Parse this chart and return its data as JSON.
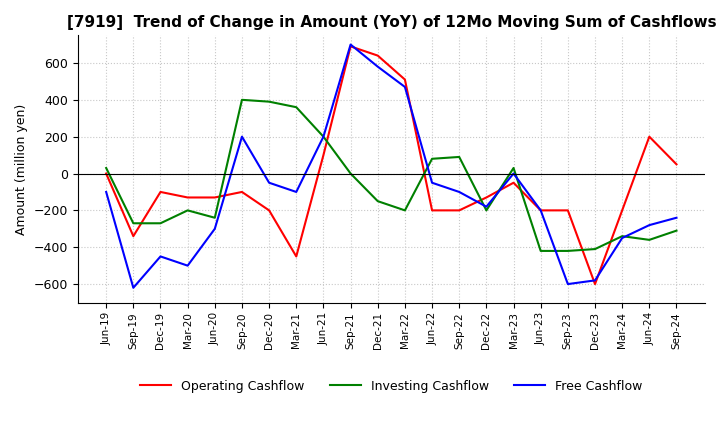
{
  "title": "[7919]  Trend of Change in Amount (YoY) of 12Mo Moving Sum of Cashflows",
  "ylabel": "Amount (million yen)",
  "ylim": [
    -700,
    750
  ],
  "yticks": [
    -600,
    -400,
    -200,
    0,
    200,
    400,
    600
  ],
  "x_labels": [
    "Jun-19",
    "Sep-19",
    "Dec-19",
    "Mar-20",
    "Jun-20",
    "Sep-20",
    "Dec-20",
    "Mar-21",
    "Jun-21",
    "Sep-21",
    "Dec-21",
    "Mar-22",
    "Jun-22",
    "Sep-22",
    "Dec-22",
    "Mar-23",
    "Jun-23",
    "Sep-23",
    "Dec-23",
    "Mar-24",
    "Jun-24",
    "Sep-24"
  ],
  "operating": [
    0,
    -340,
    -100,
    -130,
    -130,
    -100,
    -200,
    -450,
    100,
    690,
    640,
    510,
    -200,
    -200,
    -130,
    -50,
    -200,
    -200,
    -600,
    -200,
    200,
    50
  ],
  "investing": [
    30,
    -270,
    -270,
    -200,
    -240,
    400,
    390,
    360,
    200,
    0,
    -150,
    -200,
    80,
    90,
    -200,
    30,
    -420,
    -420,
    -410,
    -340,
    -360,
    -310
  ],
  "free_cashflow": [
    -100,
    -620,
    -450,
    -500,
    -300,
    200,
    -50,
    -100,
    200,
    700,
    580,
    470,
    -50,
    -100,
    -180,
    0,
    -200,
    -600,
    -580,
    -350,
    -280,
    -240
  ],
  "colors": {
    "operating": "#ff0000",
    "investing": "#008000",
    "free_cashflow": "#0000ff"
  },
  "legend_labels": [
    "Operating Cashflow",
    "Investing Cashflow",
    "Free Cashflow"
  ],
  "background_color": "#ffffff",
  "grid_color": "#c8c8c8"
}
